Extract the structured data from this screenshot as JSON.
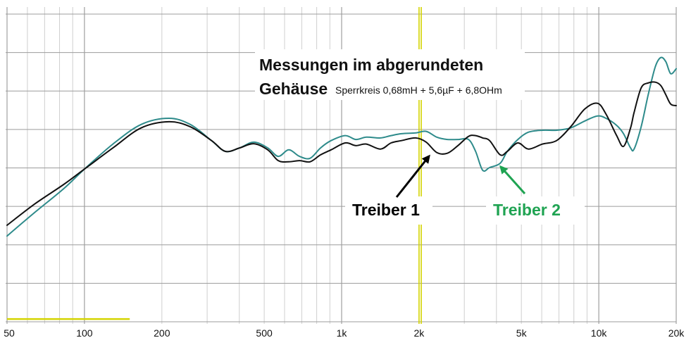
{
  "chart_data": {
    "type": "line",
    "title_lines": [
      "Messungen im abgerundeten",
      "Gehäuse"
    ],
    "subtitle": "Sperrkreis 0,68mH + 5,6µF + 6,8OHm",
    "xlabel": "",
    "ylabel": "",
    "xscale": "log",
    "xlim": [
      50,
      20000
    ],
    "ylim": [
      0,
      8
    ],
    "grid": true,
    "xticks": [
      50,
      100,
      200,
      500,
      1000,
      2000,
      5000,
      10000,
      20000
    ],
    "xtick_labels": [
      "50",
      "100",
      "200",
      "500",
      "1k",
      "2k",
      "5k",
      "10k",
      "20k"
    ],
    "x": [
      50,
      64,
      83,
      100,
      129,
      166,
      213,
      258,
      312,
      353,
      401,
      455,
      516,
      567,
      623,
      686,
      754,
      828,
      910,
      1033,
      1135,
      1248,
      1416,
      1556,
      1710,
      1940,
      2133,
      2344,
      2576,
      2832,
      3113,
      3318,
      3535,
      3763,
      4136,
      4408,
      4846,
      5327,
      6042,
      6853,
      7773,
      8817,
      9884,
      10663,
      11719,
      12478,
      13289,
      13717,
      14611,
      15562,
      16584,
      17428,
      18228,
      19036,
      20000
    ],
    "series": [
      {
        "name": "Treiber 1",
        "color": "#111111",
        "label_color": "#000000",
        "values": [
          2.51,
          3.06,
          3.57,
          3.97,
          4.52,
          5.04,
          5.2,
          5.07,
          4.71,
          4.43,
          4.52,
          4.63,
          4.47,
          4.19,
          4.16,
          4.19,
          4.16,
          4.34,
          4.47,
          4.65,
          4.58,
          4.62,
          4.49,
          4.65,
          4.71,
          4.78,
          4.67,
          4.4,
          4.38,
          4.58,
          4.82,
          4.84,
          4.78,
          4.71,
          4.34,
          4.43,
          4.65,
          4.49,
          4.62,
          4.71,
          5.07,
          5.53,
          5.68,
          5.4,
          4.85,
          4.56,
          5.04,
          5.44,
          6.08,
          6.21,
          6.23,
          6.14,
          5.9,
          5.66,
          5.62
        ]
      },
      {
        "name": "Treiber 2",
        "color": "#2e8b8b",
        "label_color": "#1fa352",
        "values": [
          2.23,
          2.84,
          3.46,
          3.97,
          4.62,
          5.13,
          5.29,
          5.13,
          4.71,
          4.43,
          4.52,
          4.67,
          4.52,
          4.3,
          4.47,
          4.3,
          4.25,
          4.52,
          4.71,
          4.84,
          4.74,
          4.8,
          4.78,
          4.84,
          4.89,
          4.91,
          4.95,
          4.8,
          4.74,
          4.74,
          4.74,
          4.43,
          3.94,
          4.01,
          4.12,
          4.43,
          4.74,
          4.93,
          4.98,
          4.98,
          5.04,
          5.22,
          5.35,
          5.29,
          5.11,
          4.89,
          4.52,
          4.49,
          5.07,
          5.9,
          6.63,
          6.87,
          6.76,
          6.45,
          6.58
        ]
      }
    ],
    "cursors": {
      "color": "#d4d400",
      "x": [
        2000,
        2040
      ]
    },
    "baseline_marker": {
      "color": "#d4d400",
      "x": [
        50,
        150
      ],
      "y": 0.07
    }
  }
}
